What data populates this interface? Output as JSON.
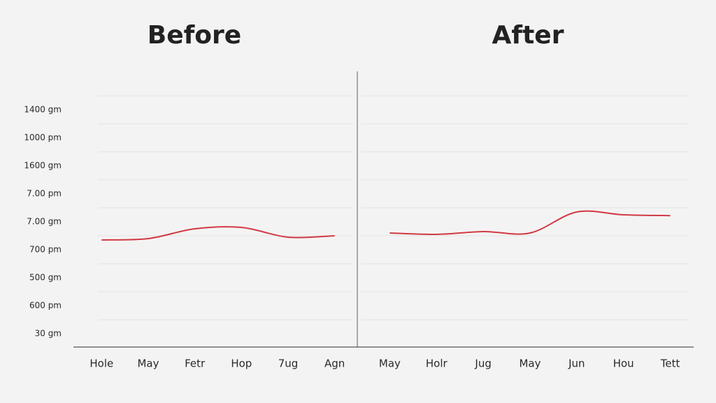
{
  "chart_data": [
    {
      "type": "line",
      "title": "Before",
      "categories": [
        "Hole",
        "May",
        "Fetr",
        "Hop",
        "7ug",
        "Agn"
      ],
      "series": [
        {
          "name": "Before",
          "color": "#d03a44",
          "values": [
            3.35,
            3.4,
            3.75,
            3.8,
            3.45,
            3.5
          ]
        }
      ],
      "ylim": [
        -0.5,
        9
      ],
      "yticks": [
        {
          "value": 0,
          "label": "30 gm"
        },
        {
          "value": 1,
          "label": "600 pm"
        },
        {
          "value": 2,
          "label": "500 gm"
        },
        {
          "value": 3,
          "label": "700 pm"
        },
        {
          "value": 4,
          "label": "7.00 gm"
        },
        {
          "value": 5,
          "label": "7.00 pm"
        },
        {
          "value": 6,
          "label": "1600 gm"
        },
        {
          "value": 7,
          "label": "1000 pm"
        },
        {
          "value": 8,
          "label": "1400 gm"
        }
      ],
      "grid": true
    },
    {
      "type": "line",
      "title": "After",
      "categories": [
        "May",
        "Holr",
        "Jug",
        "May",
        "Jun",
        "Hou",
        "Tett"
      ],
      "series": [
        {
          "name": "After",
          "color": "#d03a44",
          "values": [
            3.6,
            3.55,
            3.65,
            3.6,
            4.35,
            4.25,
            4.22
          ]
        }
      ],
      "ylim": [
        -0.5,
        9
      ],
      "grid": true
    }
  ]
}
